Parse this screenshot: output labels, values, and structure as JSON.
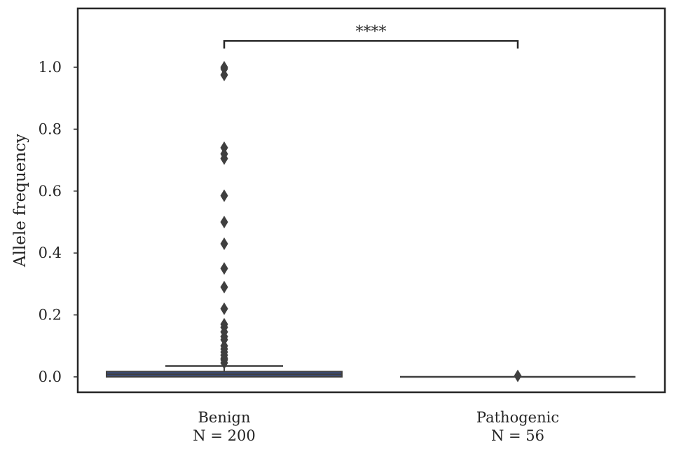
{
  "chart_data": {
    "type": "box",
    "ylabel": "Allele frequency",
    "ylim": [
      -0.05,
      1.19
    ],
    "yticks": [
      0.0,
      0.2,
      0.4,
      0.6,
      0.8,
      1.0
    ],
    "ytick_labels": [
      "0.0",
      "0.2",
      "0.4",
      "0.6",
      "0.8",
      "1.0"
    ],
    "grid": false,
    "categories": [
      {
        "name": "Benign",
        "n_label": "N = 200"
      },
      {
        "name": "Pathogenic",
        "n_label": "N = 56"
      }
    ],
    "series": [
      {
        "category": "Benign",
        "q1": 0.0,
        "median": 0.008,
        "q3": 0.017,
        "whisker_low": 0.0,
        "whisker_high": 0.035,
        "outliers": [
          1.0,
          0.995,
          0.975,
          0.74,
          0.72,
          0.705,
          0.585,
          0.5,
          0.43,
          0.35,
          0.29,
          0.22,
          0.17,
          0.16,
          0.145,
          0.13,
          0.12,
          0.1,
          0.09,
          0.08,
          0.07,
          0.06,
          0.055,
          0.045
        ]
      },
      {
        "category": "Pathogenic",
        "q1": 0.0,
        "median": 0.0,
        "q3": 0.0,
        "whisker_low": 0.0,
        "whisker_high": 0.0,
        "outliers": [
          0.003
        ]
      }
    ],
    "annotation": {
      "text": "****",
      "between": [
        "Benign",
        "Pathogenic"
      ],
      "y": 1.085
    },
    "colors": {
      "box": "#3a4f86",
      "line": "#3f3f3f",
      "outlier": "#3f3f3f",
      "frame": "#262626"
    }
  }
}
